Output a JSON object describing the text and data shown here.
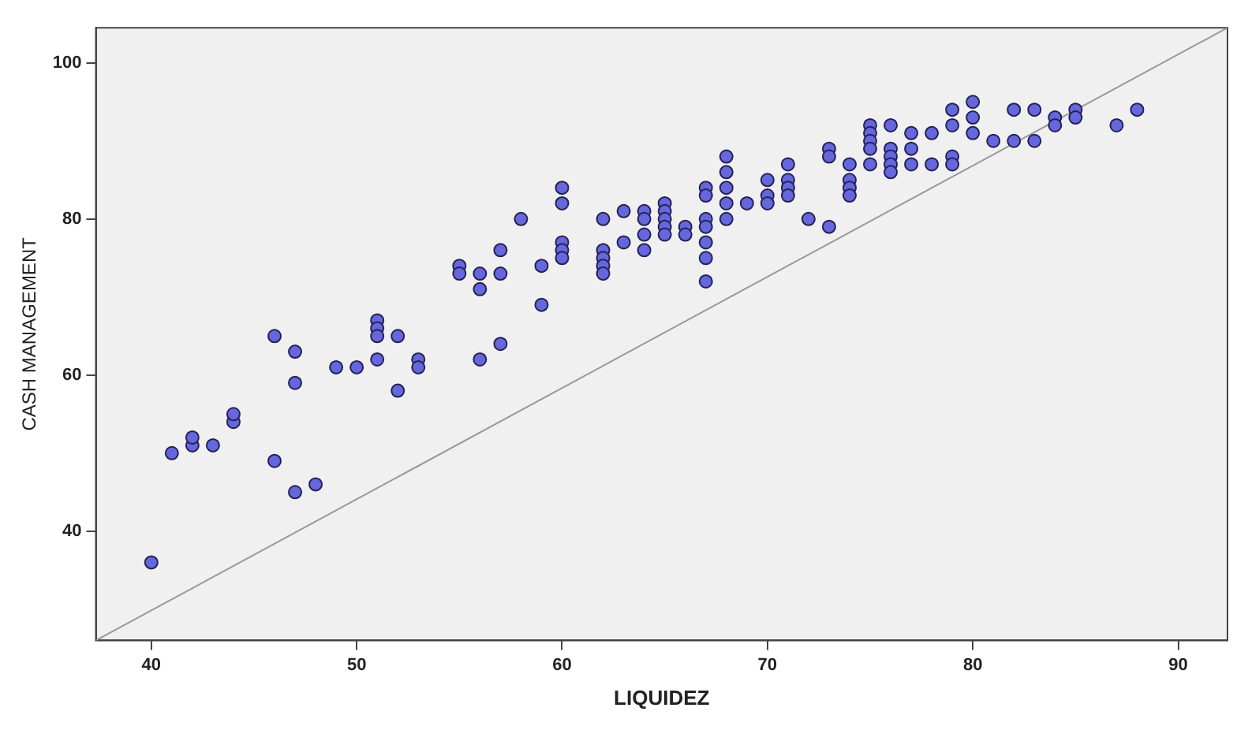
{
  "chart_data": {
    "type": "scatter",
    "xlabel": "LIQUIDEZ",
    "ylabel": "CASH MANAGEMENT",
    "xlim": [
      37.3,
      92.4
    ],
    "ylim": [
      26,
      104.5
    ],
    "xticks": [
      40,
      50,
      60,
      70,
      80,
      90
    ],
    "yticks": [
      40,
      60,
      80,
      100
    ],
    "grid": false,
    "legend": false,
    "marker": "circle",
    "series": [
      {
        "type": "scatter",
        "color": "#6666dd",
        "x": [
          40,
          41,
          42,
          42,
          43,
          44,
          44,
          46,
          46,
          47,
          47,
          47,
          48,
          49,
          50,
          51,
          51,
          51,
          51,
          52,
          52,
          53,
          53,
          55,
          55,
          56,
          56,
          56,
          57,
          57,
          57,
          58,
          59,
          59,
          60,
          60,
          60,
          60,
          60,
          62,
          62,
          62,
          62,
          62,
          63,
          63,
          64,
          64,
          64,
          64,
          65,
          65,
          65,
          65,
          65,
          66,
          66,
          67,
          67,
          67,
          67,
          67,
          67,
          67,
          68,
          68,
          68,
          68,
          68,
          69,
          70,
          70,
          70,
          71,
          71,
          71,
          71,
          72,
          73,
          73,
          73,
          74,
          74,
          74,
          74,
          75,
          75,
          75,
          75,
          75,
          76,
          76,
          76,
          76,
          76,
          77,
          77,
          77,
          78,
          78,
          79,
          79,
          79,
          79,
          80,
          80,
          80,
          81,
          82,
          82,
          83,
          83,
          84,
          84,
          85,
          85,
          87,
          88
        ],
        "values": [
          36,
          50,
          51,
          52,
          51,
          54,
          55,
          65,
          49,
          63,
          59,
          45,
          46,
          61,
          61,
          67,
          66,
          65,
          62,
          65,
          58,
          62,
          61,
          74,
          73,
          73,
          71,
          62,
          76,
          73,
          64,
          80,
          74,
          69,
          84,
          82,
          77,
          76,
          75,
          80,
          76,
          75,
          74,
          73,
          81,
          77,
          81,
          80,
          78,
          76,
          82,
          81,
          80,
          79,
          78,
          79,
          78,
          84,
          83,
          80,
          79,
          77,
          75,
          72,
          88,
          86,
          84,
          82,
          80,
          82,
          85,
          83,
          82,
          87,
          85,
          84,
          83,
          80,
          89,
          88,
          79,
          87,
          85,
          84,
          83,
          92,
          91,
          90,
          89,
          87,
          92,
          89,
          88,
          87,
          86,
          91,
          89,
          87,
          91,
          87,
          94,
          92,
          88,
          87,
          95,
          93,
          91,
          90,
          94,
          90,
          94,
          90,
          93,
          92,
          94,
          93,
          92,
          94
        ]
      },
      {
        "type": "line",
        "color": "#999999",
        "x": [
          37.3,
          92.4
        ],
        "values": [
          26,
          104.5
        ],
        "marker": "none"
      }
    ]
  }
}
